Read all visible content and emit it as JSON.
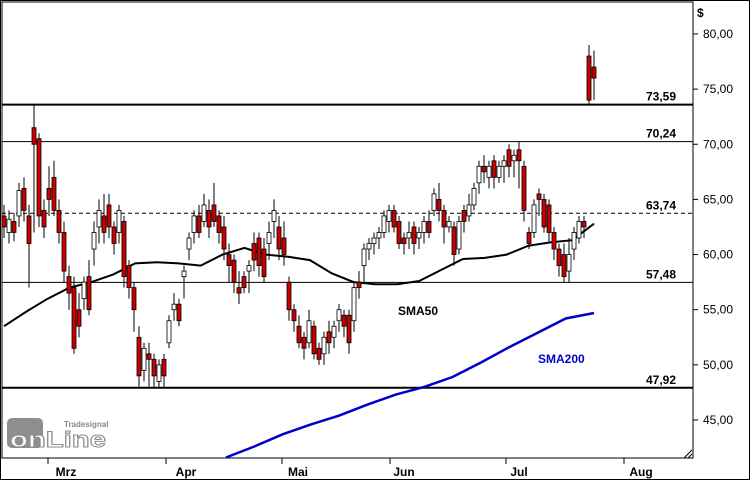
{
  "chart_data": {
    "type": "candlestick",
    "currency_symbol": "$",
    "x_months": [
      "Mrz",
      "Apr",
      "Mai",
      "Jun",
      "Jul",
      "Aug"
    ],
    "y_ticks": [
      "45,00",
      "50,00",
      "55,00",
      "60,00",
      "65,00",
      "70,00",
      "75,00",
      "80,00"
    ],
    "ylim": [
      41.5,
      83.5
    ],
    "levels": [
      {
        "value": 73.59,
        "label": "73,59",
        "style": "solid",
        "weight": "heavy"
      },
      {
        "value": 70.24,
        "label": "70,24",
        "style": "solid",
        "weight": "normal"
      },
      {
        "value": 63.74,
        "label": "63,74",
        "style": "dashed",
        "weight": "normal"
      },
      {
        "value": 57.48,
        "label": "57,48",
        "style": "solid",
        "weight": "normal"
      },
      {
        "value": 47.92,
        "label": "47,92",
        "style": "solid",
        "weight": "heavy"
      }
    ],
    "sma_labels": [
      {
        "name": "SMA50",
        "color": "#000000"
      },
      {
        "name": "SMA200",
        "color": "#0000cc"
      }
    ],
    "sma50": [
      53.5,
      54.8,
      56.0,
      57.0,
      57.5,
      58.2,
      59.2,
      59.3,
      59.2,
      59.0,
      60.0,
      60.6,
      60.0,
      59.8,
      59.5,
      58.3,
      57.5,
      57.3,
      57.3,
      57.6,
      58.6,
      59.6,
      59.7,
      60.0,
      60.8,
      61.1,
      61.3,
      62.8
    ],
    "sma200": [
      41.6,
      42.6,
      43.7,
      44.6,
      45.4,
      46.4,
      47.3,
      48.0,
      48.9,
      50.2,
      51.6,
      52.9,
      54.2,
      54.7
    ],
    "candle_colors": {
      "up": "#ffffff",
      "down": "#cc0000",
      "wick": "#000000"
    },
    "logo": {
      "brand": "Tradesignal",
      "name": "onLine"
    },
    "grid": false
  }
}
